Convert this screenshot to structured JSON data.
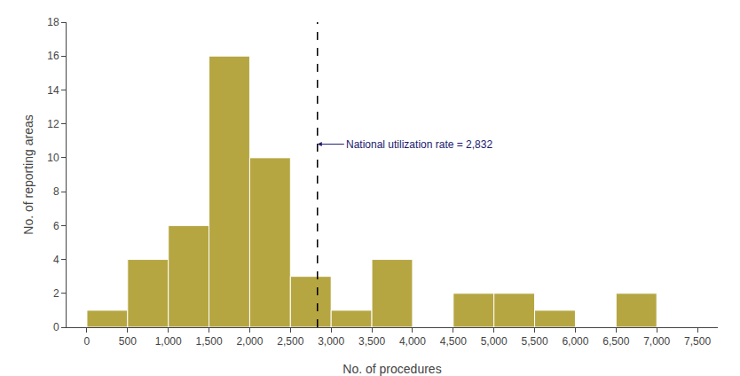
{
  "chart_data": {
    "type": "histogram",
    "xlabel": "No. of procedures",
    "ylabel": "No. of reporting areas",
    "bins": [
      0,
      500,
      1000,
      1500,
      2000,
      2500,
      3000,
      3500,
      4000,
      4500,
      5000,
      5500,
      6000,
      6500,
      7000,
      7500
    ],
    "values": [
      1,
      4,
      6,
      16,
      10,
      3,
      1,
      4,
      0,
      2,
      2,
      1,
      0,
      2,
      0
    ],
    "color": "#b5a642",
    "xlim": [
      -250,
      7750
    ],
    "ylim": [
      0,
      18
    ],
    "xticks": [
      0,
      500,
      {
        "value": 1000,
        "label": "1,000"
      },
      {
        "value": 1500,
        "label": "1,500"
      },
      {
        "value": 2000,
        "label": "2,000"
      },
      {
        "value": 2500,
        "label": "2,500"
      },
      {
        "value": 3000,
        "label": "3,000"
      },
      {
        "value": 3500,
        "label": "3,500"
      },
      {
        "value": 4000,
        "label": "4,000"
      },
      {
        "value": 4500,
        "label": "4,500"
      },
      {
        "value": 5000,
        "label": "5,000"
      },
      {
        "value": 5500,
        "label": "5,500"
      },
      {
        "value": 6000,
        "label": "6,000"
      },
      {
        "value": 6500,
        "label": "6,500"
      },
      {
        "value": 7000,
        "label": "7,000"
      },
      {
        "value": 7500,
        "label": "7,500"
      }
    ],
    "yticks": [
      0,
      2,
      4,
      6,
      8,
      10,
      12,
      14,
      16,
      18
    ],
    "grid": false,
    "vline": {
      "x": 2832,
      "color": "#000000",
      "line_style": "dashed"
    },
    "annotations": [
      {
        "text": "National utilization rate = 2,832",
        "x": 2832,
        "y": 10.8,
        "color": "#1a1a6e"
      }
    ]
  }
}
